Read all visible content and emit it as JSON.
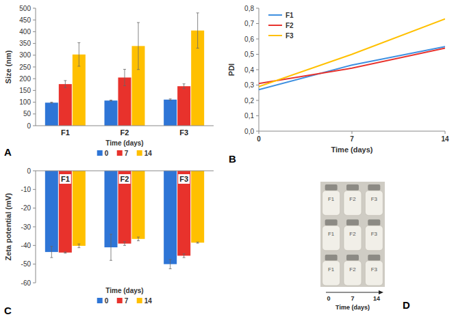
{
  "chart_data": [
    {
      "panel": "A",
      "type": "bar",
      "y_label": "Size (nm)",
      "categories": [
        "F1",
        "F2",
        "F3"
      ],
      "legend_title": "Time (days)",
      "series": [
        {
          "name": "0",
          "color": "#2e75d6",
          "values": [
            98,
            107,
            111
          ],
          "errors": [
            2,
            2,
            3
          ]
        },
        {
          "name": "7",
          "color": "#e8322c",
          "values": [
            177,
            205,
            168
          ],
          "errors": [
            15,
            35,
            10
          ]
        },
        {
          "name": "14",
          "color": "#ffc000",
          "values": [
            303,
            339,
            405
          ],
          "errors": [
            50,
            100,
            75
          ]
        }
      ],
      "ylim": [
        0,
        500
      ],
      "yticks": [
        0,
        50,
        100,
        150,
        200,
        250,
        300,
        350,
        400,
        450,
        500
      ],
      "legend": "bottom",
      "grid": false
    },
    {
      "panel": "B",
      "type": "line",
      "y_label": "PDI",
      "x_label": "Time (days)",
      "x": [
        0,
        7,
        14
      ],
      "series": [
        {
          "name": "F1",
          "color": "#3d8fe0",
          "values": [
            0.27,
            0.43,
            0.55
          ]
        },
        {
          "name": "F2",
          "color": "#e8322c",
          "values": [
            0.31,
            0.41,
            0.54
          ]
        },
        {
          "name": "F3",
          "color": "#ffc000",
          "values": [
            0.29,
            0.5,
            0.73
          ]
        }
      ],
      "xlim": [
        0,
        14
      ],
      "xticks": [
        0,
        7,
        14
      ],
      "ylim": [
        0,
        0.8
      ],
      "yticks": [
        {
          "value": 0,
          "label": "0,0"
        },
        {
          "value": 0.1,
          "label": "0,1"
        },
        {
          "value": 0.2,
          "label": "0,2"
        },
        {
          "value": 0.3,
          "label": "0,3"
        },
        {
          "value": 0.4,
          "label": "0,4"
        },
        {
          "value": 0.5,
          "label": "0,5"
        },
        {
          "value": 0.6,
          "label": "0,6"
        },
        {
          "value": 0.7,
          "label": "0,7"
        },
        {
          "value": 0.8,
          "label": "0,8"
        }
      ],
      "legend": "top-left",
      "grid": false
    },
    {
      "panel": "C",
      "type": "bar",
      "y_label": "Zeta potential (mV)",
      "categories": [
        "F1",
        "F2",
        "F3"
      ],
      "legend_title": "Time (days)",
      "series": [
        {
          "name": "0",
          "color": "#2e75d6",
          "values": [
            -43.5,
            -41,
            -50
          ],
          "errors": [
            3,
            7,
            2.5
          ]
        },
        {
          "name": "7",
          "color": "#e8322c",
          "values": [
            -43.8,
            -39,
            -45.5
          ],
          "errors": [
            0.3,
            1,
            1
          ]
        },
        {
          "name": "14",
          "color": "#ffc000",
          "values": [
            -40.2,
            -36.5,
            -38.5
          ],
          "errors": [
            1,
            1,
            0.3
          ]
        }
      ],
      "ylim": [
        -60,
        0
      ],
      "yticks": [
        0,
        -10,
        -20,
        -30,
        -40,
        -50,
        -60
      ],
      "legend": "bottom",
      "grid": false
    }
  ],
  "photo": {
    "panel": "D",
    "bottle_labels": [
      "F1",
      "F2",
      "F3"
    ],
    "time_points": [
      0,
      7,
      14
    ],
    "x_label": "Time (days)"
  }
}
